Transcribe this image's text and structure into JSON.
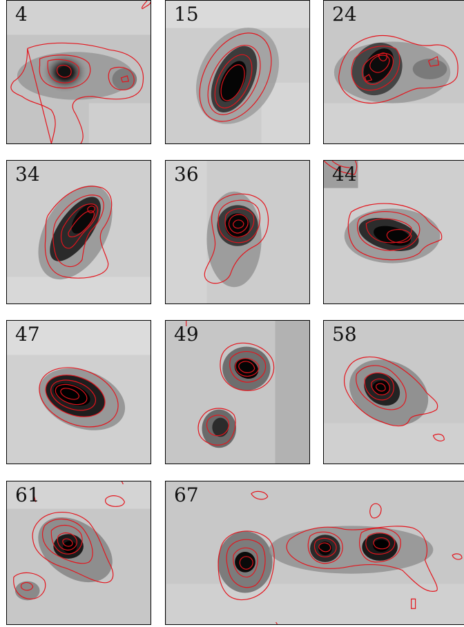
{
  "panels": [
    {
      "label": "4"
    },
    {
      "label": "15"
    },
    {
      "label": "24"
    },
    {
      "label": "34"
    },
    {
      "label": "36"
    },
    {
      "label": "44"
    },
    {
      "label": "47"
    },
    {
      "label": "49"
    },
    {
      "label": "58"
    },
    {
      "label": "61"
    },
    {
      "label": "67"
    }
  ],
  "colors": {
    "contour": "#e4141c",
    "source_core": "#0a0a0a",
    "background_mid": "#b9b9b9"
  }
}
